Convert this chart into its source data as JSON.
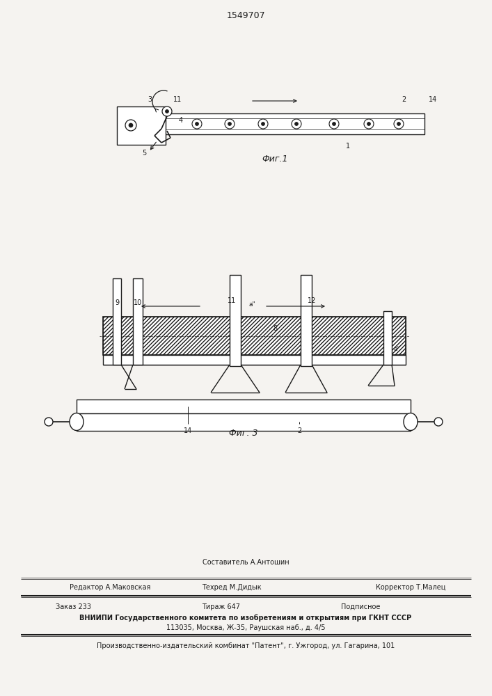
{
  "title": "1549707",
  "bg_color": "#f5f3f0",
  "line_color": "#1a1a1a",
  "fig1_label": "Фиг.1",
  "fig3_label": "Фиг. 3"
}
